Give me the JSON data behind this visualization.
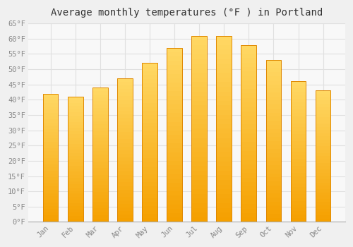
{
  "title": "Average monthly temperatures (°F ) in Portland",
  "months": [
    "Jan",
    "Feb",
    "Mar",
    "Apr",
    "May",
    "Jun",
    "Jul",
    "Aug",
    "Sep",
    "Oct",
    "Nov",
    "Dec"
  ],
  "values": [
    42,
    41,
    44,
    47,
    52,
    57,
    61,
    61,
    58,
    53,
    46,
    43
  ],
  "bar_color_top": "#FFD966",
  "bar_color_bottom": "#F5A000",
  "bar_edge_color": "#E08800",
  "ylim": [
    0,
    65
  ],
  "yticks": [
    0,
    5,
    10,
    15,
    20,
    25,
    30,
    35,
    40,
    45,
    50,
    55,
    60,
    65
  ],
  "background_color": "#f0f0f0",
  "plot_bg_color": "#f8f8f8",
  "grid_color": "#e0e0e0",
  "title_fontsize": 10,
  "tick_fontsize": 7.5,
  "font_family": "monospace"
}
